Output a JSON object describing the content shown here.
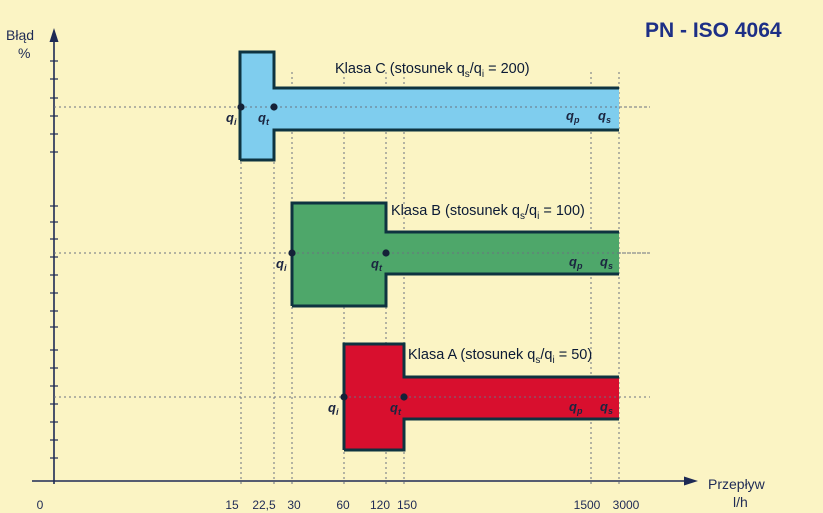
{
  "title": "PN - ISO 4064",
  "y_axis": {
    "label_line1": "Błąd",
    "label_line2": "%"
  },
  "x_axis": {
    "label_line1": "Przepływ",
    "label_line2": "l/h"
  },
  "ticks": [
    "0",
    "15",
    "22,5",
    "30",
    "60",
    "120",
    "150",
    "1500",
    "3000"
  ],
  "classes": [
    {
      "id": "C",
      "label_prefix": "Klasa C (stosunek q",
      "label_s": "s",
      "label_slash": "/q",
      "label_i": "i",
      "label_suffix": " = 200)",
      "color": "#7fcdee"
    },
    {
      "id": "B",
      "label_prefix": "Klasa B (stosunek q",
      "label_s": "s",
      "label_slash": "/q",
      "label_i": "i",
      "label_suffix": " = 100)",
      "color": "#4ea76a"
    },
    {
      "id": "A",
      "label_prefix": "Klasa A (stosunek q",
      "label_s": "s",
      "label_slash": "/q",
      "label_i": "i",
      "label_suffix": " = 50)",
      "color": "#d80f2e"
    }
  ],
  "markers": {
    "q": "q",
    "i": "i",
    "t": "t",
    "p": "p",
    "s": "s"
  },
  "colors": {
    "outline": "#0e3340",
    "axis": "#1e2a55",
    "background": "#fbf4c4",
    "title": "#1d2f86"
  }
}
